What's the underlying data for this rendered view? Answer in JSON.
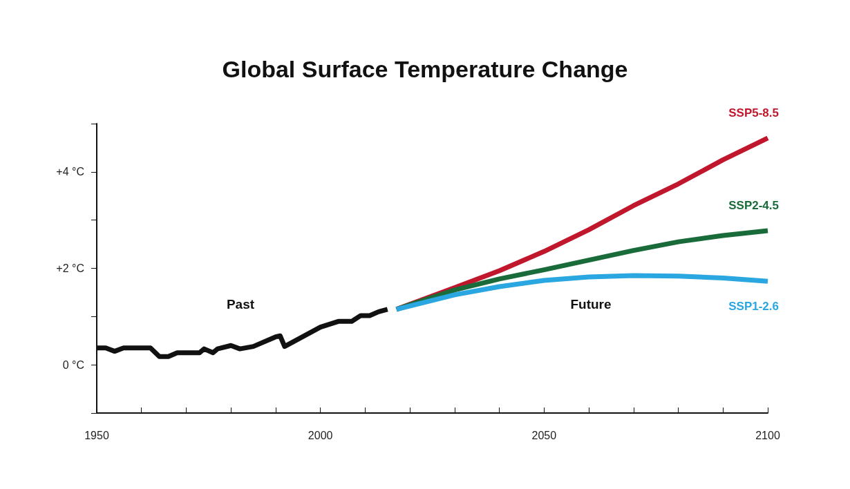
{
  "chart_data": {
    "type": "line",
    "title": "Global Surface Temperature Change",
    "xlim": [
      1950,
      2100
    ],
    "xticks": [
      1950,
      {
        "value": 1960,
        "label": null
      },
      {
        "value": 1970,
        "label": null
      },
      {
        "value": 1980,
        "label": null
      },
      {
        "value": 1990,
        "label": null
      },
      2000,
      {
        "value": 2010,
        "label": null
      },
      {
        "value": 2020,
        "label": null
      },
      {
        "value": 2030,
        "label": null
      },
      {
        "value": 2040,
        "label": null
      },
      2050,
      {
        "value": 2060,
        "label": null
      },
      {
        "value": 2070,
        "label": null
      },
      {
        "value": 2080,
        "label": null
      },
      {
        "value": 2090,
        "label": null
      },
      2100
    ],
    "ylim": [
      -1,
      5
    ],
    "yticks": [
      {
        "value": -1,
        "label": null
      },
      {
        "value": 0,
        "label": "0 °C"
      },
      {
        "value": 1,
        "label": null
      },
      {
        "value": 2,
        "label": "+2 °C"
      },
      {
        "value": 3,
        "label": null
      },
      {
        "value": 4,
        "label": "+4 °C"
      },
      {
        "value": 5,
        "label": null
      }
    ],
    "grid": false,
    "legend": false,
    "marker": "none",
    "line_style": "solid",
    "annotations": [
      "Past",
      "Future"
    ],
    "series": [
      {
        "color": "#111111",
        "x": [
          1950,
          1952,
          1954,
          1956,
          1962,
          1964,
          1966,
          1968,
          1973,
          1974,
          1976,
          1977,
          1980,
          1982,
          1985,
          1990,
          1991,
          1992,
          1996,
          2000,
          2004,
          2007,
          2009,
          2011,
          2013,
          2015
        ],
        "values": [
          0.35,
          0.35,
          0.28,
          0.35,
          0.35,
          0.17,
          0.17,
          0.25,
          0.25,
          0.33,
          0.25,
          0.33,
          0.4,
          0.33,
          0.38,
          0.58,
          0.6,
          0.38,
          0.58,
          0.78,
          0.9,
          0.9,
          1.02,
          1.02,
          1.1,
          1.15
        ]
      },
      {
        "name": "SSP5-8.5",
        "color": "#c0172d",
        "x": [
          2017,
          2030,
          2040,
          2050,
          2060,
          2070,
          2080,
          2090,
          2100
        ],
        "values": [
          1.15,
          1.6,
          1.95,
          2.35,
          2.8,
          3.3,
          3.75,
          4.25,
          4.7
        ]
      },
      {
        "name": "SSP2-4.5",
        "color": "#1a6b3a",
        "x": [
          2017,
          2030,
          2040,
          2050,
          2060,
          2070,
          2080,
          2090,
          2100
        ],
        "values": [
          1.15,
          1.55,
          1.78,
          1.97,
          2.17,
          2.37,
          2.55,
          2.68,
          2.78
        ]
      },
      {
        "name": "SSP1-2.6",
        "color": "#2aa6e0",
        "x": [
          2017,
          2030,
          2040,
          2050,
          2060,
          2070,
          2080,
          2090,
          2100
        ],
        "values": [
          1.15,
          1.45,
          1.62,
          1.75,
          1.82,
          1.85,
          1.84,
          1.8,
          1.73
        ]
      }
    ]
  }
}
